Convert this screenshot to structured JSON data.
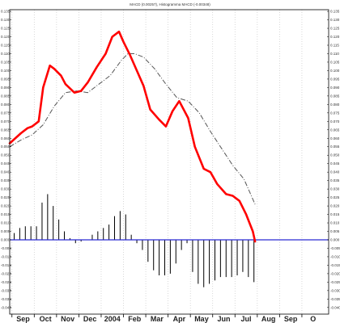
{
  "chart_data": {
    "type": "line",
    "title": "MACD (0.00257), Histogramma MACD (-0.00348)",
    "xlabel": "",
    "ylabel": "",
    "ylim": [
      -0.042,
      0.136
    ],
    "y_ticks": [
      0.135,
      0.13,
      0.125,
      0.12,
      0.115,
      0.11,
      0.105,
      0.1,
      0.095,
      0.09,
      0.085,
      0.08,
      0.075,
      0.07,
      0.065,
      0.06,
      0.055,
      0.05,
      0.045,
      0.04,
      0.035,
      0.03,
      0.025,
      0.02,
      0.015,
      0.01,
      0.005,
      0.0,
      -0.005,
      -0.01,
      -0.015,
      -0.02,
      -0.025,
      -0.03,
      -0.035,
      -0.04
    ],
    "y_tick_labels": [
      "0.135",
      "0.130",
      "0.125",
      "0.120",
      "0.115",
      "0.110",
      "0.105",
      "0.100",
      "0.095",
      "0.090",
      "0.085",
      "0.080",
      "0.075",
      "0.070",
      "0.065",
      "0.060",
      "0.055",
      "0.050",
      "0.045",
      "0.040",
      "0.035",
      "0.030",
      "0.025",
      "0.020",
      "0.015",
      "0.010",
      "0.005",
      "0.000",
      "-0.005",
      "-0.010",
      "-0.015",
      "-0.020",
      "-0.025",
      "-0.030",
      "-0.035",
      "-0.040"
    ],
    "x_range": [
      0,
      14.3
    ],
    "x_ticks": [
      {
        "x": 0.6,
        "label": "Sep"
      },
      {
        "x": 1.6,
        "label": "Oct"
      },
      {
        "x": 2.6,
        "label": "Nov"
      },
      {
        "x": 3.6,
        "label": "Dec"
      },
      {
        "x": 4.6,
        "label": "2004"
      },
      {
        "x": 5.6,
        "label": "Feb"
      },
      {
        "x": 6.6,
        "label": "Mar"
      },
      {
        "x": 7.6,
        "label": "Apr"
      },
      {
        "x": 8.6,
        "label": "May"
      },
      {
        "x": 9.6,
        "label": "Jun"
      },
      {
        "x": 10.6,
        "label": "Jul"
      },
      {
        "x": 11.6,
        "label": "Aug"
      },
      {
        "x": 12.6,
        "label": "Sep"
      },
      {
        "x": 13.6,
        "label": "O"
      }
    ],
    "grid_x": [
      0.1,
      1.1,
      2.1,
      3.1,
      4.1,
      5.1,
      6.1,
      7.1,
      8.1,
      9.1,
      10.1,
      11.1,
      12.1,
      13.1
    ],
    "zero_line": 0.0,
    "series": [
      {
        "role": "macd",
        "style": "line",
        "color": "#ff0000",
        "x": [
          0,
          0.5,
          0.8,
          1.0,
          1.3,
          1.5,
          1.8,
          2.0,
          2.3,
          2.5,
          2.9,
          3.2,
          3.5,
          3.9,
          4.3,
          4.6,
          4.9,
          5.1,
          5.4,
          5.7,
          6.0,
          6.3,
          6.7,
          7.0,
          7.3,
          7.6,
          8.0,
          8.3,
          8.7,
          9.0,
          9.3,
          9.7,
          10.0,
          10.3,
          10.6,
          10.9,
          11.0
        ],
        "values": [
          0.057,
          0.063,
          0.066,
          0.067,
          0.07,
          0.09,
          0.103,
          0.101,
          0.097,
          0.092,
          0.087,
          0.088,
          0.093,
          0.102,
          0.11,
          0.12,
          0.123,
          0.117,
          0.109,
          0.1,
          0.091,
          0.077,
          0.071,
          0.067,
          0.076,
          0.082,
          0.072,
          0.055,
          0.042,
          0.04,
          0.033,
          0.027,
          0.026,
          0.023,
          0.015,
          0.005,
          -0.001
        ]
      },
      {
        "role": "signal",
        "style": "dashed",
        "color": "#555555",
        "x": [
          0,
          0.5,
          1.0,
          1.5,
          2.0,
          2.5,
          3.0,
          3.5,
          4.0,
          4.5,
          5.0,
          5.3,
          5.6,
          6.0,
          6.5,
          7.0,
          7.5,
          8.0,
          8.5,
          9.0,
          9.5,
          10.0,
          10.5,
          11.0
        ],
        "values": [
          0.055,
          0.059,
          0.062,
          0.068,
          0.079,
          0.087,
          0.088,
          0.087,
          0.092,
          0.097,
          0.106,
          0.11,
          0.11,
          0.108,
          0.101,
          0.092,
          0.084,
          0.082,
          0.075,
          0.064,
          0.054,
          0.044,
          0.036,
          0.021
        ]
      },
      {
        "role": "histogram",
        "style": "bars",
        "color": "#000000",
        "x": [
          0.2,
          0.45,
          0.7,
          0.95,
          1.2,
          1.45,
          1.7,
          1.95,
          2.2,
          2.45,
          2.7,
          2.95,
          3.2,
          3.45,
          3.7,
          3.95,
          4.2,
          4.45,
          4.7,
          4.95,
          5.2,
          5.45,
          5.7,
          5.95,
          6.2,
          6.45,
          6.7,
          6.95,
          7.2,
          7.45,
          7.7,
          7.95,
          8.2,
          8.45,
          8.7,
          8.95,
          9.2,
          9.45,
          9.7,
          9.95,
          10.2,
          10.45,
          10.7,
          10.95
        ],
        "values": [
          0.004,
          0.007,
          0.008,
          0.008,
          0.008,
          0.022,
          0.027,
          0.02,
          0.012,
          0.005,
          0.001,
          -0.002,
          -0.001,
          0.0,
          0.003,
          0.005,
          0.007,
          0.009,
          0.014,
          0.017,
          0.015,
          0.003,
          -0.002,
          -0.006,
          -0.013,
          -0.018,
          -0.021,
          -0.021,
          -0.02,
          -0.014,
          -0.006,
          -0.002,
          -0.019,
          -0.026,
          -0.028,
          -0.026,
          -0.024,
          -0.022,
          -0.022,
          -0.022,
          -0.021,
          -0.019,
          -0.022,
          -0.025
        ]
      }
    ]
  },
  "colors": {
    "background": "#ffffff",
    "grid": "#c8c8c8",
    "zero_line": "#2a2ad4",
    "axis": "#000000"
  }
}
